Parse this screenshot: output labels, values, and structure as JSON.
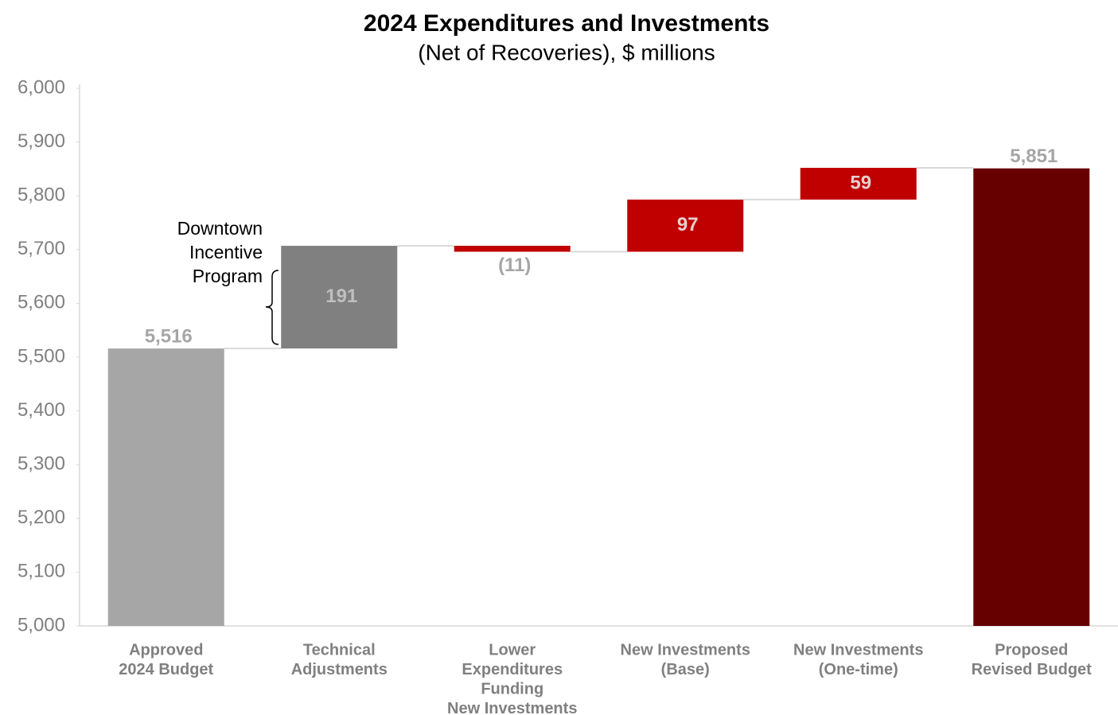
{
  "chart_data": {
    "type": "waterfall",
    "title": "2024 Expenditures and Investments",
    "subtitle": "(Net of Recoveries), $ millions",
    "categories": [
      [
        "Approved",
        "2024 Budget"
      ],
      [
        "Technical",
        "Adjustments"
      ],
      [
        "Lower",
        "Expenditures",
        "Funding",
        "New Investments"
      ],
      [
        "New Investments",
        "(Base)"
      ],
      [
        "New Investments",
        "(One-time)"
      ],
      [
        "Proposed",
        "Revised Budget"
      ]
    ],
    "measures": [
      "absolute",
      "relative",
      "relative",
      "relative",
      "relative",
      "absolute"
    ],
    "values": [
      5516,
      191,
      -11,
      97,
      59,
      5851
    ],
    "value_labels": [
      "5,516",
      "191",
      "(11)",
      "97",
      "59",
      "5,851"
    ],
    "colors": [
      "#a6a6a6",
      "#808080",
      "#c00000",
      "#c00000",
      "#c00000",
      "#660000"
    ],
    "ylim": [
      5000,
      6000
    ],
    "yticks": [
      {
        "value": 5000,
        "label": "5,000"
      },
      {
        "value": 5100,
        "label": "5,100"
      },
      {
        "value": 5200,
        "label": "5,200"
      },
      {
        "value": 5300,
        "label": "5,300"
      },
      {
        "value": 5400,
        "label": "5,400"
      },
      {
        "value": 5500,
        "label": "5,500"
      },
      {
        "value": 5600,
        "label": "5,600"
      },
      {
        "value": 5700,
        "label": "5,700"
      },
      {
        "value": 5800,
        "label": "5,800"
      },
      {
        "value": 5900,
        "label": "5,900"
      },
      {
        "value": 6000,
        "label": "6,000"
      }
    ],
    "annotation": [
      "Downtown",
      "Incentive",
      "Program"
    ]
  }
}
